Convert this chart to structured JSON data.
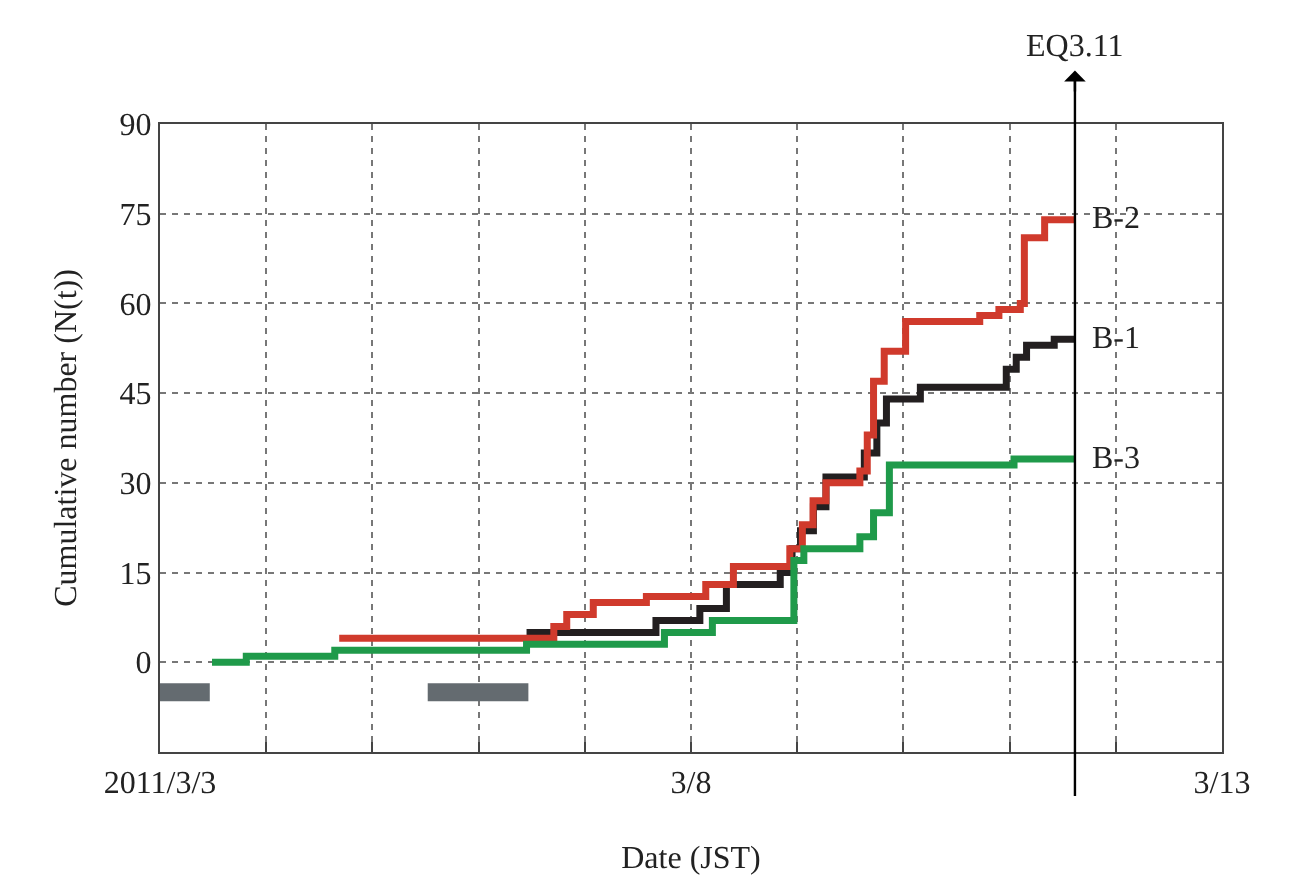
{
  "chart_data": {
    "type": "step",
    "xlabel": "Date (JST)",
    "ylabel": "Cumulative number (N(t))",
    "xlim": [
      "2011-03-03",
      "2011-03-13"
    ],
    "xticks": [
      {
        "value": "2011-03-03",
        "label": "2011/3/3"
      },
      {
        "value": "2011-03-04",
        "label": null
      },
      {
        "value": "2011-03-05",
        "label": null
      },
      {
        "value": "2011-03-06",
        "label": null
      },
      {
        "value": "2011-03-07",
        "label": null
      },
      {
        "value": "2011-03-08",
        "label": "3/8"
      },
      {
        "value": "2011-03-09",
        "label": null
      },
      {
        "value": "2011-03-10",
        "label": null
      },
      {
        "value": "2011-03-11",
        "label": null
      },
      {
        "value": "2011-03-12",
        "label": null
      },
      {
        "value": "2011-03-13",
        "label": "3/13"
      }
    ],
    "ylim": [
      -15,
      90
    ],
    "yticks": [
      0,
      15,
      30,
      45,
      60,
      75,
      90
    ],
    "grid": true,
    "legend": false,
    "line_style": "solid",
    "marker": "none",
    "series": [
      {
        "type": "line",
        "color": "#646b70",
        "x": [
          "2011-03-03T00:00",
          "2011-03-03T11:15",
          "2011-03-04T12:00",
          "2011-03-05T12:30",
          "2011-03-06T11:15"
        ],
        "values": [
          -5,
          -5,
          null,
          -5,
          -5
        ]
      },
      {
        "name": "B-3",
        "color": "#1f9a4a",
        "x": [
          "2011-03-03T11:45",
          "2011-03-03T19:30",
          "2011-03-04T15:30",
          "2011-03-06T10:50",
          "2011-03-07T18:00",
          "2011-03-08T04:50",
          "2011-03-08T23:15",
          "2011-03-09T01:30",
          "2011-03-09T14:10",
          "2011-03-09T17:15",
          "2011-03-09T20:50",
          "2011-03-11T01:00",
          "2011-03-11T14:50"
        ],
        "values": [
          0,
          1,
          2,
          3,
          5,
          7,
          17,
          19,
          21,
          25,
          33,
          34,
          34
        ]
      },
      {
        "name": "B-1",
        "color": "#231f20",
        "x": [
          "2011-03-06T10:50",
          "2011-03-07T16:05",
          "2011-03-08T02:00",
          "2011-03-08T08:00",
          "2011-03-08T20:10",
          "2011-03-08T22:50",
          "2011-03-09T00:45",
          "2011-03-09T03:40",
          "2011-03-09T06:30",
          "2011-03-09T15:10",
          "2011-03-09T18:00",
          "2011-03-09T20:10",
          "2011-03-10T03:50",
          "2011-03-10T23:15",
          "2011-03-11T01:30",
          "2011-03-11T03:50",
          "2011-03-11T10:05",
          "2011-03-11T14:50"
        ],
        "values": [
          5,
          7,
          9,
          13,
          15,
          19,
          22,
          26,
          31,
          35,
          40,
          44,
          46,
          49,
          51,
          53,
          54,
          54
        ]
      },
      {
        "name": "B-2",
        "color": "#d03a2c",
        "x": [
          "2011-03-04T16:30",
          "2011-03-06T17:00",
          "2011-03-06T19:55",
          "2011-03-07T01:55",
          "2011-03-07T13:55",
          "2011-03-08T03:20",
          "2011-03-08T09:35",
          "2011-03-08T22:20",
          "2011-03-09T01:10",
          "2011-03-09T03:35",
          "2011-03-09T06:30",
          "2011-03-09T14:10",
          "2011-03-09T15:50",
          "2011-03-09T17:15",
          "2011-03-09T19:40",
          "2011-03-10T00:30",
          "2011-03-10T17:15",
          "2011-03-10T21:35",
          "2011-03-11T02:25",
          "2011-03-11T03:20",
          "2011-03-11T07:55",
          "2011-03-11T14:50"
        ],
        "values": [
          4,
          6,
          8,
          10,
          11,
          13,
          16,
          19,
          23,
          27,
          30,
          32,
          38,
          47,
          52,
          57,
          58,
          59,
          60,
          71,
          74,
          74
        ]
      }
    ],
    "ref_lines": [
      {
        "axis": "x",
        "value": "2011-03-11T14:46",
        "label": "EQ3.11",
        "color": "#000000"
      }
    ]
  }
}
